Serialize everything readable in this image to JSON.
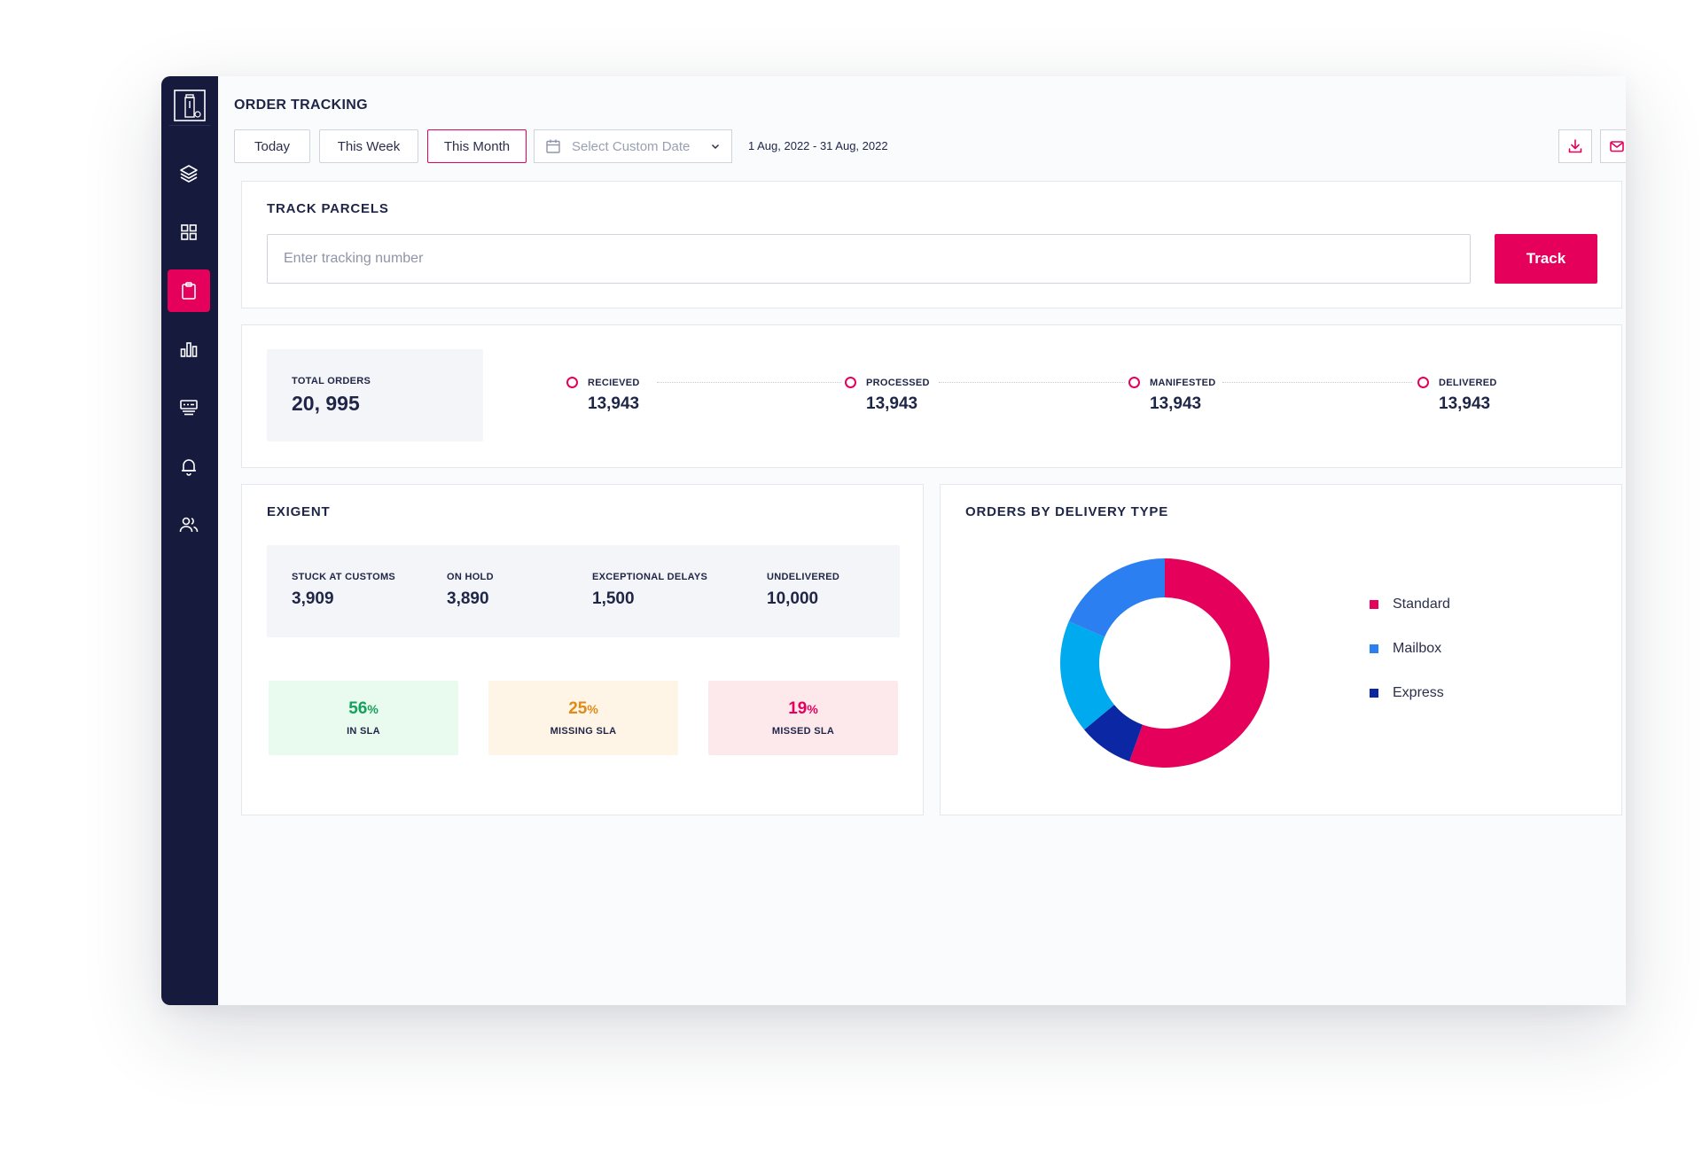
{
  "header": {
    "title": "ORDER TRACKING",
    "filters": [
      "Today",
      "This Week",
      "This Month"
    ],
    "active_filter": "This Month",
    "custom_date_placeholder": "Select Custom Date",
    "date_range": "1 Aug, 2022 - 31 Aug, 2022"
  },
  "sidebar": {
    "items": [
      {
        "icon": "layers-icon",
        "active": false
      },
      {
        "icon": "grid-icon",
        "active": false
      },
      {
        "icon": "clipboard-icon",
        "active": true
      },
      {
        "icon": "bar-chart-icon",
        "active": false
      },
      {
        "icon": "server-icon",
        "active": false
      },
      {
        "icon": "bell-icon",
        "active": false
      },
      {
        "icon": "users-icon",
        "active": false
      }
    ]
  },
  "track": {
    "title": "TRACK PARCELS",
    "placeholder": "Enter tracking number",
    "button": "Track"
  },
  "summary": {
    "total_label": "TOTAL ORDERS",
    "total_value": "20, 995",
    "steps": [
      {
        "label": "RECIEVED",
        "value": "13,943"
      },
      {
        "label": "PROCESSED",
        "value": "13,943"
      },
      {
        "label": "MANIFESTED",
        "value": "13,943"
      },
      {
        "label": "DELIVERED",
        "value": "13,943"
      }
    ]
  },
  "exigent": {
    "title": "EXIGENT",
    "items": [
      {
        "label": "STUCK AT CUSTOMS",
        "value": "3,909"
      },
      {
        "label": "ON HOLD",
        "value": "3,890"
      },
      {
        "label": "EXCEPTIONAL DELAYS",
        "value": "1,500"
      },
      {
        "label": "UNDELIVERED",
        "value": "10,000"
      }
    ],
    "sla": [
      {
        "value": "56",
        "unit": "%",
        "label": "IN SLA",
        "color": "#16a05d",
        "bg": "#e9fbee"
      },
      {
        "value": "25",
        "unit": "%",
        "label": "MISSING SLA",
        "color": "#e08a1a",
        "bg": "#fff5e6"
      },
      {
        "value": "19",
        "unit": "%",
        "label": "MISSED SLA",
        "color": "#e5005b",
        "bg": "#fde8ec"
      }
    ]
  },
  "delivery": {
    "title": "ORDERS BY DELIVERY TYPE",
    "legend": [
      {
        "label": "Standard",
        "color": "#e5005b"
      },
      {
        "label": "Mailbox",
        "color": "#2b7ff0"
      },
      {
        "label": "Express",
        "color": "#0b27a3"
      }
    ]
  },
  "chart_data": {
    "type": "pie",
    "title": "ORDERS BY DELIVERY TYPE",
    "donut": true,
    "slices": [
      {
        "label": "Standard",
        "value": 55.5,
        "color": "#e5005b"
      },
      {
        "label": "Express",
        "value": 8.5,
        "color": "#0b27a3"
      },
      {
        "label": "",
        "value": 17.5,
        "color": "#00aaee"
      },
      {
        "label": "Mailbox",
        "value": 18.5,
        "color": "#2b7ff0"
      }
    ]
  },
  "colors": {
    "accent": "#e5005b",
    "sidebar": "#161a3d",
    "text": "#1f2547"
  }
}
